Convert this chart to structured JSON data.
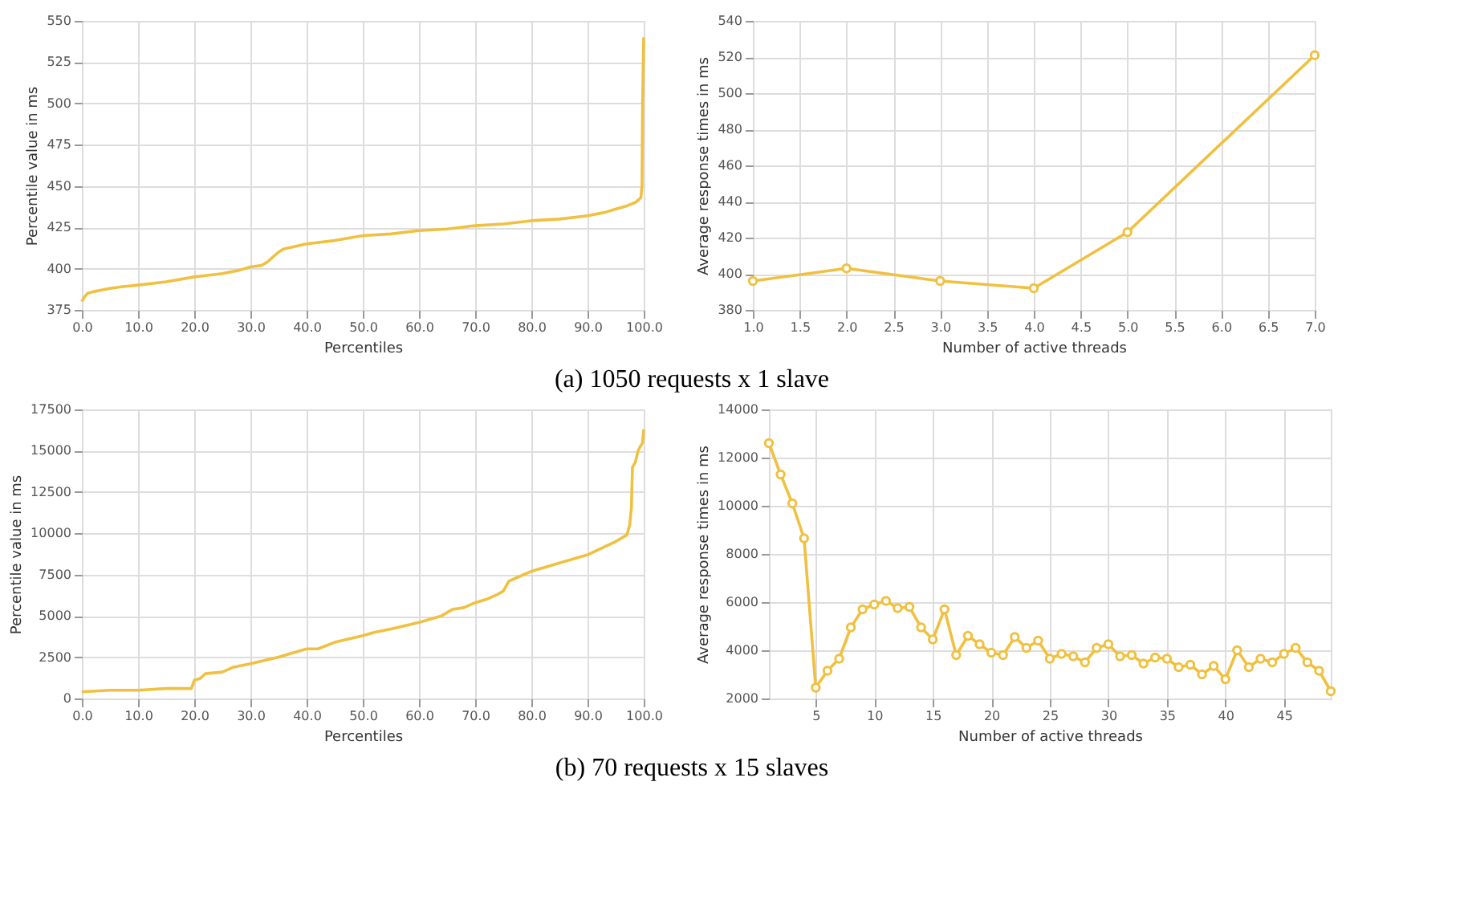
{
  "chart_data": [
    {
      "type": "line",
      "xlabel": "Percentiles",
      "ylabel": "Percentile value in ms",
      "x": [
        0,
        0.5,
        1,
        2,
        5,
        7,
        10,
        15,
        20,
        25,
        28,
        30,
        32,
        33,
        35,
        36,
        40,
        45,
        50,
        55,
        60,
        65,
        70,
        75,
        80,
        85,
        90,
        93,
        95,
        97,
        98.5,
        99.5,
        99.7,
        99.8,
        100
      ],
      "series": [
        {
          "color": "#f0c040",
          "values": [
            380,
            383,
            385,
            386,
            388,
            389,
            390,
            392,
            395,
            397,
            399,
            401,
            402,
            404,
            410,
            412,
            415,
            417,
            420,
            421,
            423,
            424,
            426,
            427,
            429,
            430,
            432,
            434,
            436,
            438,
            440,
            443,
            450,
            500,
            540
          ]
        }
      ],
      "xlim": [
        0,
        100
      ],
      "xticks": [
        {
          "value": 0,
          "label": "0.0"
        },
        {
          "value": 10,
          "label": "10.0"
        },
        {
          "value": 20,
          "label": "20.0"
        },
        {
          "value": 30,
          "label": "30.0"
        },
        {
          "value": 40,
          "label": "40.0"
        },
        {
          "value": 50,
          "label": "50.0"
        },
        {
          "value": 60,
          "label": "60.0"
        },
        {
          "value": 70,
          "label": "70.0"
        },
        {
          "value": 80,
          "label": "80.0"
        },
        {
          "value": 90,
          "label": "90.0"
        },
        {
          "value": 100,
          "label": "100.0"
        }
      ],
      "ylim": [
        375,
        550
      ],
      "yticks": [
        375,
        400,
        425,
        450,
        475,
        500,
        525,
        550
      ],
      "grid": true,
      "marker": "none"
    },
    {
      "type": "line",
      "xlabel": "Number of active threads",
      "ylabel": "Average response times in ms",
      "x": [
        1,
        2,
        3,
        4,
        5,
        7
      ],
      "series": [
        {
          "color": "#f0c040",
          "values": [
            396,
            403,
            396,
            392,
            423,
            521
          ]
        }
      ],
      "xlim": [
        1,
        7
      ],
      "xticks": [
        {
          "value": 1,
          "label": "1.0"
        },
        {
          "value": 1.5,
          "label": "1.5"
        },
        {
          "value": 2,
          "label": "2.0"
        },
        {
          "value": 2.5,
          "label": "2.5"
        },
        {
          "value": 3,
          "label": "3.0"
        },
        {
          "value": 3.5,
          "label": "3.5"
        },
        {
          "value": 4,
          "label": "4.0"
        },
        {
          "value": 4.5,
          "label": "4.5"
        },
        {
          "value": 5,
          "label": "5.0"
        },
        {
          "value": 5.5,
          "label": "5.5"
        },
        {
          "value": 6,
          "label": "6.0"
        },
        {
          "value": 6.5,
          "label": "6.5"
        },
        {
          "value": 7,
          "label": "7.0"
        }
      ],
      "ylim": [
        380,
        540
      ],
      "yticks": [
        380,
        400,
        420,
        440,
        460,
        480,
        500,
        520,
        540
      ],
      "grid": true,
      "marker": "circle",
      "annotations": [
        "(a)   1050 requests x 1 slave"
      ]
    },
    {
      "type": "line",
      "xlabel": "Percentiles",
      "ylabel": "Percentile value in ms",
      "x": [
        0,
        5,
        10,
        15,
        19.5,
        20,
        21,
        22,
        25,
        27,
        30,
        35,
        40,
        42,
        45,
        50,
        52,
        55,
        60,
        62,
        64,
        66,
        68,
        70,
        72,
        74,
        75,
        76,
        78,
        80,
        82,
        85,
        90,
        95,
        97,
        97.5,
        97.8,
        98,
        98.5,
        99,
        99.8,
        100
      ],
      "series": [
        {
          "color": "#f0c040",
          "values": [
            400,
            500,
            500,
            600,
            600,
            1100,
            1200,
            1500,
            1600,
            1900,
            2100,
            2500,
            3000,
            3000,
            3400,
            3800,
            4000,
            4200,
            4600,
            4800,
            5000,
            5400,
            5500,
            5800,
            6000,
            6300,
            6500,
            7100,
            7400,
            7700,
            7900,
            8200,
            8700,
            9500,
            9900,
            10500,
            11500,
            14000,
            14300,
            15000,
            15500,
            16300
          ]
        }
      ],
      "xlim": [
        0,
        100
      ],
      "xticks": [
        {
          "value": 0,
          "label": "0.0"
        },
        {
          "value": 10,
          "label": "10.0"
        },
        {
          "value": 20,
          "label": "20.0"
        },
        {
          "value": 30,
          "label": "30.0"
        },
        {
          "value": 40,
          "label": "40.0"
        },
        {
          "value": 50,
          "label": "50.0"
        },
        {
          "value": 60,
          "label": "60.0"
        },
        {
          "value": 70,
          "label": "70.0"
        },
        {
          "value": 80,
          "label": "80.0"
        },
        {
          "value": 90,
          "label": "90.0"
        },
        {
          "value": 100,
          "label": "100.0"
        }
      ],
      "ylim": [
        0,
        17500
      ],
      "yticks": [
        0,
        2500,
        5000,
        7500,
        10000,
        12500,
        15000,
        17500
      ],
      "grid": true,
      "marker": "none"
    },
    {
      "type": "line",
      "xlabel": "Number of active threads",
      "ylabel": "Average response times in ms",
      "x": [
        1,
        2,
        3,
        4,
        5,
        6,
        7,
        8,
        9,
        10,
        11,
        12,
        13,
        14,
        15,
        16,
        17,
        18,
        19,
        20,
        21,
        22,
        23,
        24,
        25,
        26,
        27,
        28,
        29,
        30,
        31,
        32,
        33,
        34,
        35,
        36,
        37,
        38,
        39,
        40,
        41,
        42,
        43,
        44,
        45,
        46,
        47,
        48,
        49
      ],
      "series": [
        {
          "color": "#f0c040",
          "values": [
            12600,
            11300,
            10100,
            8650,
            2450,
            3150,
            3650,
            4950,
            5700,
            5900,
            6050,
            5750,
            5800,
            4950,
            4450,
            5700,
            3800,
            4600,
            4250,
            3900,
            3800,
            4550,
            4100,
            4400,
            3650,
            3850,
            3750,
            3500,
            4100,
            4250,
            3750,
            3800,
            3450,
            3700,
            3650,
            3300,
            3400,
            3000,
            3350,
            2800,
            4000,
            3300,
            3650,
            3500,
            3850,
            4100,
            3500,
            3150,
            2300
          ]
        }
      ],
      "xlim": [
        1,
        49
      ],
      "xticks": [
        5,
        10,
        15,
        20,
        25,
        30,
        35,
        40,
        45
      ],
      "ylim": [
        2000,
        14000
      ],
      "yticks": [
        2000,
        4000,
        6000,
        8000,
        10000,
        12000,
        14000
      ],
      "grid": true,
      "marker": "circle",
      "annotations": [
        "(b)   70 requests x 15 slaves"
      ]
    }
  ]
}
